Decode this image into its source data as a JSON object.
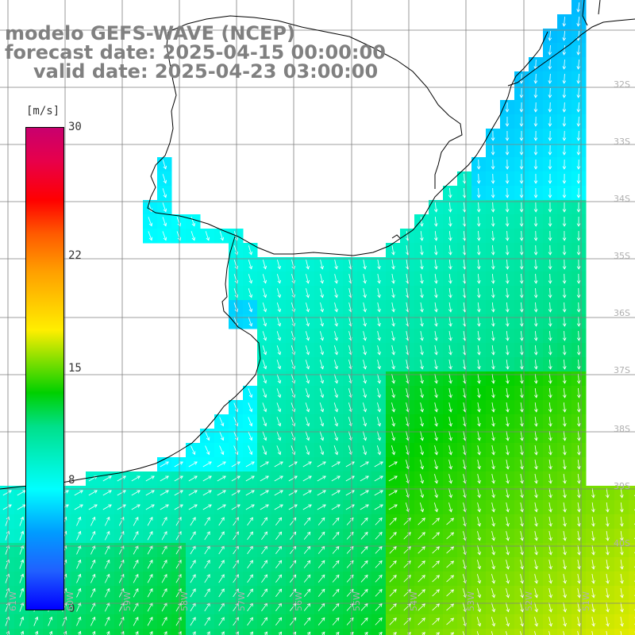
{
  "title": {
    "line1": "modelo GEFS-WAVE (NCEP)",
    "line2": "forecast date: 2025-04-15 00:00:00",
    "line3": "valid date: 2025-04-23 03:00:00"
  },
  "colorbar": {
    "unit": "[m/s]",
    "min": 0,
    "max": 30,
    "ticks": [
      {
        "label": "30",
        "value": 30
      },
      {
        "label": "22",
        "value": 22
      },
      {
        "label": "15",
        "value": 15
      },
      {
        "label": "8",
        "value": 8
      },
      {
        "label": "0",
        "value": 0
      }
    ]
  },
  "lat_labels": [
    "32S",
    "33S",
    "34S",
    "35S",
    "36S",
    "37S",
    "38S",
    "39S",
    "40S"
  ],
  "lon_labels": [
    "61W",
    "60W",
    "59W",
    "58W",
    "57W",
    "56W",
    "55W",
    "54W",
    "53W",
    "52W",
    "51W"
  ],
  "colors": {
    "land": "#ffffff",
    "grid": "#7f7f7f",
    "coast": "#000000",
    "arrow": "#ffffff"
  }
}
